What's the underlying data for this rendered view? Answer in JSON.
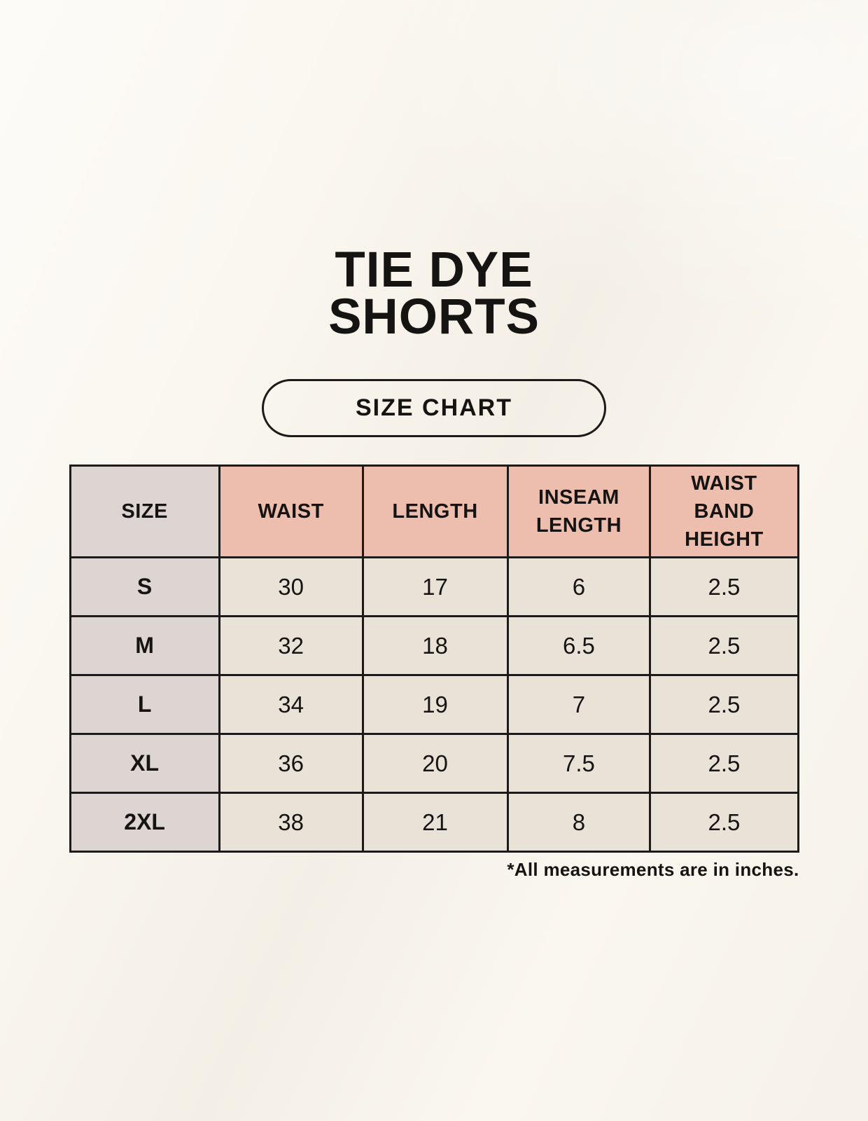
{
  "header": {
    "title_lines": [
      "TIE DYE",
      "SHORTS"
    ],
    "badge_label": "SIZE CHART"
  },
  "table": {
    "columns": [
      {
        "key": "size",
        "label_lines": [
          "SIZE"
        ],
        "header_style": "gray"
      },
      {
        "key": "waist",
        "label_lines": [
          "WAIST"
        ],
        "header_style": "pink"
      },
      {
        "key": "length",
        "label_lines": [
          "LENGTH"
        ],
        "header_style": "pink"
      },
      {
        "key": "inseam-length",
        "label_lines": [
          "INSEAM",
          "LENGTH"
        ],
        "header_style": "pink"
      },
      {
        "key": "waist-band-height",
        "label_lines": [
          "WAIST",
          "BAND",
          "HEIGHT"
        ],
        "header_style": "pink"
      }
    ],
    "rows": [
      {
        "size": "S",
        "values": [
          "30",
          "17",
          "6",
          "2.5"
        ]
      },
      {
        "size": "M",
        "values": [
          "32",
          "18",
          "6.5",
          "2.5"
        ]
      },
      {
        "size": "L",
        "values": [
          "34",
          "19",
          "7",
          "2.5"
        ]
      },
      {
        "size": "XL",
        "values": [
          "36",
          "20",
          "7.5",
          "2.5"
        ]
      },
      {
        "size": "2XL",
        "values": [
          "38",
          "21",
          "8",
          "2.5"
        ]
      }
    ],
    "footnote": "*All measurements are in inches."
  },
  "colors": {
    "page_bg": "#faf7f0",
    "header_pink": "#edbeae",
    "size_col_gray": "#dcd5d1",
    "cell_cream": "#e9e2d6",
    "border_black": "#1c1b1a",
    "text_black": "#151413"
  }
}
